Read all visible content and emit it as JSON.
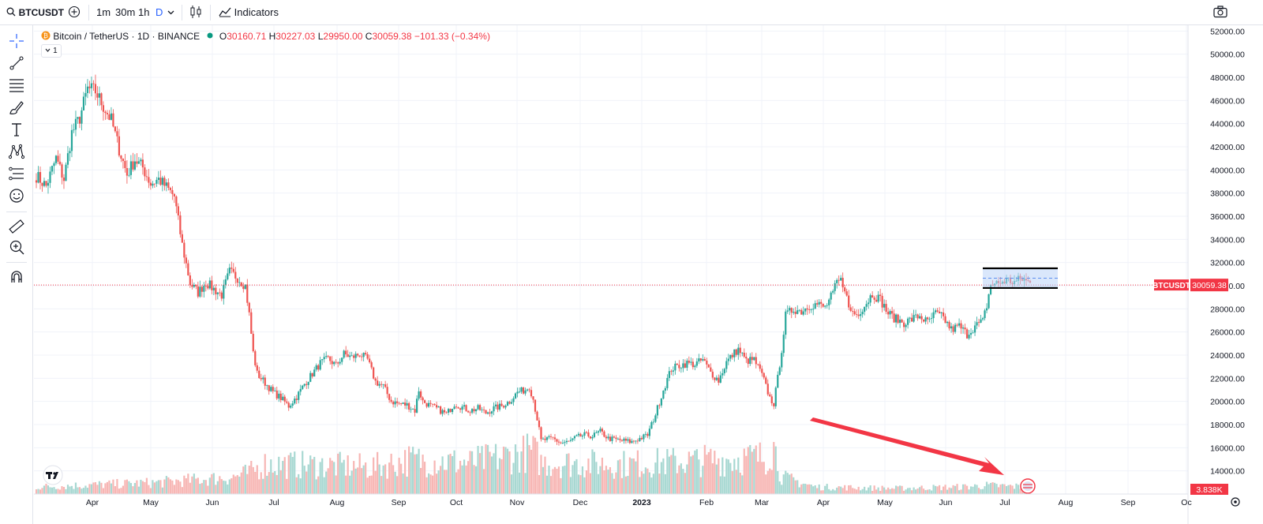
{
  "toolbar": {
    "symbol": "BTCUSDT",
    "intervals": [
      "1m",
      "30m",
      "1h",
      "D"
    ],
    "active_interval": "D",
    "indicators_label": "Indicators"
  },
  "legend": {
    "title": "Bitcoin / TetherUS · 1D · BINANCE",
    "open_label": "O",
    "open": "30160.71",
    "high_label": "H",
    "high": "30227.03",
    "low_label": "L",
    "low": "29950.00",
    "close_label": "C",
    "close": "30059.38",
    "change": "−101.33 (−0.34%)",
    "collapse_count": "1"
  },
  "colors": {
    "up": "#26a69a",
    "down": "#ef5350",
    "volume_up": "#a8d8d2",
    "volume_down": "#f7b6b4",
    "price_line": "#f23645",
    "rect_fill": "#bbd3f7",
    "arrow": "#f23645"
  },
  "chart_data": {
    "type": "candlestick",
    "symbol_label": "BTCUSDT",
    "last_price": 30059.38,
    "last_price_label": "30059.38",
    "volume_label": "3.838K",
    "y_range": [
      12000,
      52500
    ],
    "y_ticks": [
      "14000.00",
      "16000.00",
      "18000.00",
      "20000.00",
      "22000.00",
      "24000.00",
      "26000.00",
      "28000.00",
      "30000.00",
      "32000.00",
      "34000.00",
      "36000.00",
      "38000.00",
      "40000.00",
      "42000.00",
      "44000.00",
      "46000.00",
      "48000.00",
      "50000.00",
      "52000.00"
    ],
    "x_labels": [
      "Apr",
      "May",
      "Jun",
      "Jul",
      "Aug",
      "Sep",
      "Oct",
      "Nov",
      "Dec",
      "2023",
      "Feb",
      "Mar",
      "Apr",
      "May",
      "Jun",
      "Jul",
      "Aug",
      "Sep",
      "Oc"
    ],
    "x_label_bold": "2023",
    "price_path": [
      [
        0,
        39500
      ],
      [
        5,
        38600
      ],
      [
        10,
        41000
      ],
      [
        14,
        39200
      ],
      [
        18,
        43200
      ],
      [
        22,
        44500
      ],
      [
        26,
        47000
      ],
      [
        30,
        46800
      ],
      [
        34,
        45500
      ],
      [
        38,
        44300
      ],
      [
        42,
        41800
      ],
      [
        46,
        39600
      ],
      [
        50,
        40900
      ],
      [
        54,
        40200
      ],
      [
        58,
        38800
      ],
      [
        62,
        39200
      ],
      [
        66,
        38500
      ],
      [
        70,
        37700
      ],
      [
        74,
        33500
      ],
      [
        78,
        30200
      ],
      [
        82,
        29400
      ],
      [
        86,
        30300
      ],
      [
        90,
        29700
      ],
      [
        94,
        29200
      ],
      [
        98,
        31200
      ],
      [
        102,
        30700
      ],
      [
        106,
        30000
      ],
      [
        108,
        27500
      ],
      [
        110,
        24200
      ],
      [
        112,
        22400
      ],
      [
        116,
        21600
      ],
      [
        120,
        20800
      ],
      [
        124,
        20300
      ],
      [
        128,
        19600
      ],
      [
        132,
        20400
      ],
      [
        136,
        21500
      ],
      [
        140,
        22400
      ],
      [
        144,
        23300
      ],
      [
        148,
        23700
      ],
      [
        152,
        23100
      ],
      [
        156,
        24100
      ],
      [
        160,
        23800
      ],
      [
        164,
        24100
      ],
      [
        168,
        23600
      ],
      [
        172,
        21700
      ],
      [
        176,
        21300
      ],
      [
        180,
        20000
      ],
      [
        184,
        19800
      ],
      [
        188,
        19700
      ],
      [
        192,
        19200
      ],
      [
        194,
        21000
      ],
      [
        196,
        20000
      ],
      [
        200,
        19600
      ],
      [
        204,
        19300
      ],
      [
        208,
        18900
      ],
      [
        212,
        19800
      ],
      [
        216,
        19500
      ],
      [
        220,
        19200
      ],
      [
        224,
        19400
      ],
      [
        228,
        19000
      ],
      [
        232,
        19400
      ],
      [
        236,
        19600
      ],
      [
        240,
        20000
      ],
      [
        244,
        20800
      ],
      [
        248,
        21000
      ],
      [
        250,
        21300
      ],
      [
        252,
        20200
      ],
      [
        254,
        18500
      ],
      [
        256,
        16600
      ],
      [
        258,
        16700
      ],
      [
        262,
        16800
      ],
      [
        266,
        16400
      ],
      [
        270,
        16500
      ],
      [
        274,
        16900
      ],
      [
        278,
        17100
      ],
      [
        282,
        17000
      ],
      [
        286,
        17400
      ],
      [
        290,
        16800
      ],
      [
        294,
        16700
      ],
      [
        298,
        16600
      ],
      [
        302,
        16500
      ],
      [
        306,
        16800
      ],
      [
        310,
        17100
      ],
      [
        314,
        18900
      ],
      [
        318,
        21000
      ],
      [
        322,
        22800
      ],
      [
        326,
        23100
      ],
      [
        330,
        23300
      ],
      [
        334,
        23200
      ],
      [
        338,
        23600
      ],
      [
        342,
        22500
      ],
      [
        346,
        21800
      ],
      [
        350,
        23400
      ],
      [
        354,
        24200
      ],
      [
        356,
        24500
      ],
      [
        360,
        23500
      ],
      [
        364,
        23600
      ],
      [
        368,
        22300
      ],
      [
        372,
        20300
      ],
      [
        374,
        19800
      ],
      [
        376,
        22000
      ],
      [
        378,
        24500
      ],
      [
        380,
        27400
      ],
      [
        384,
        28000
      ],
      [
        388,
        27800
      ],
      [
        392,
        28300
      ],
      [
        396,
        28400
      ],
      [
        400,
        28100
      ],
      [
        404,
        29300
      ],
      [
        406,
        30300
      ],
      [
        408,
        30400
      ],
      [
        410,
        29900
      ],
      [
        412,
        28000
      ],
      [
        416,
        27500
      ],
      [
        420,
        28300
      ],
      [
        424,
        29300
      ],
      [
        428,
        28800
      ],
      [
        432,
        27600
      ],
      [
        436,
        27100
      ],
      [
        440,
        26800
      ],
      [
        444,
        27100
      ],
      [
        448,
        27400
      ],
      [
        452,
        26800
      ],
      [
        456,
        27600
      ],
      [
        460,
        27200
      ],
      [
        464,
        26200
      ],
      [
        468,
        26500
      ],
      [
        472,
        25800
      ],
      [
        476,
        26500
      ],
      [
        480,
        26900
      ],
      [
        482,
        28300
      ],
      [
        484,
        30100
      ],
      [
        488,
        30200
      ],
      [
        492,
        30500
      ],
      [
        496,
        30300
      ],
      [
        500,
        30600
      ],
      [
        504,
        30200
      ]
    ],
    "volume_shape": [
      [
        0,
        10
      ],
      [
        60,
        16
      ],
      [
        100,
        24
      ],
      [
        108,
        30
      ],
      [
        116,
        42
      ],
      [
        150,
        40
      ],
      [
        170,
        38
      ],
      [
        190,
        48
      ],
      [
        220,
        44
      ],
      [
        252,
        60
      ],
      [
        256,
        44
      ],
      [
        300,
        42
      ],
      [
        330,
        46
      ],
      [
        370,
        52
      ],
      [
        374,
        68
      ],
      [
        378,
        24
      ],
      [
        395,
        10
      ],
      [
        435,
        8
      ],
      [
        470,
        10
      ],
      [
        482,
        12
      ],
      [
        504,
        10
      ]
    ],
    "consolidation_box": {
      "low": 29800,
      "high": 31500
    },
    "annotation": "arrow"
  }
}
